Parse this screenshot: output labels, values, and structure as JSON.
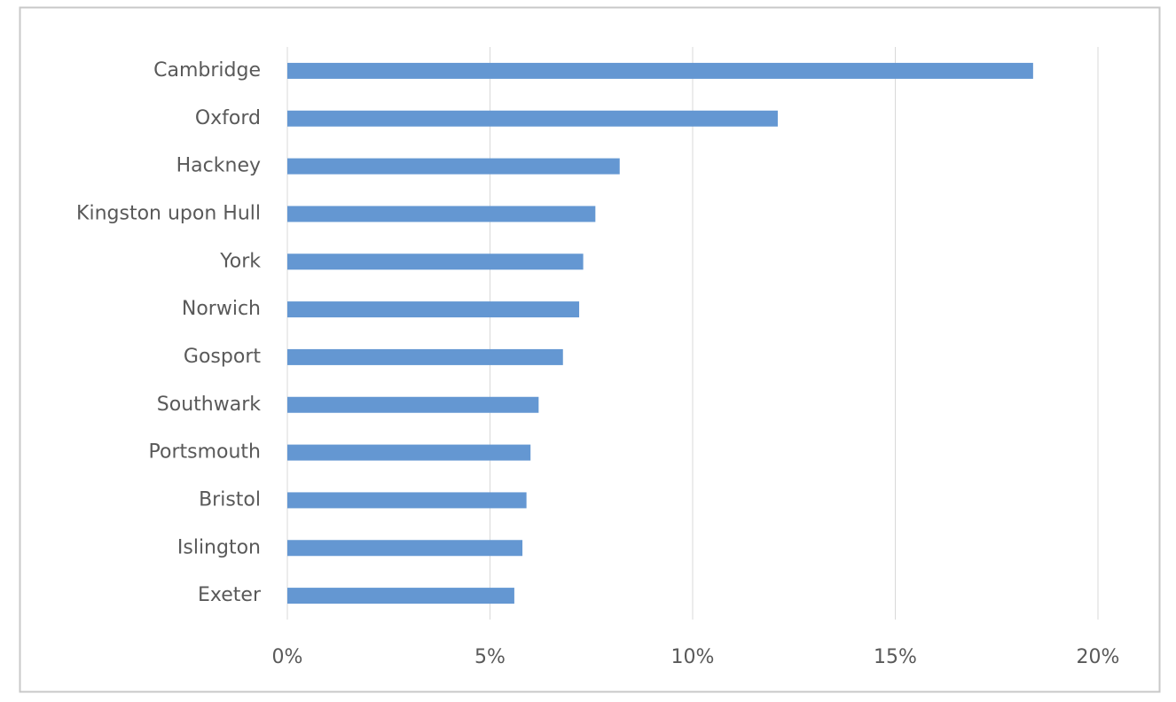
{
  "chart_data": {
    "type": "hbar",
    "categories": [
      "Cambridge",
      "Oxford",
      "Hackney",
      "Kingston upon Hull",
      "York",
      "Norwich",
      "Gosport",
      "Southwark",
      "Portsmouth",
      "Bristol",
      "Islington",
      "Exeter"
    ],
    "values": [
      18.4,
      12.1,
      8.2,
      7.6,
      7.3,
      7.2,
      6.8,
      6.2,
      6.0,
      5.9,
      5.8,
      5.6
    ],
    "color": "#6497d2",
    "xlim": [
      0,
      20
    ],
    "xticks": [
      {
        "value": 0,
        "label": "0%"
      },
      {
        "value": 5,
        "label": "5%"
      },
      {
        "value": 10,
        "label": "10%"
      },
      {
        "value": 15,
        "label": "15%"
      },
      {
        "value": 20,
        "label": "20%"
      }
    ],
    "grid": true
  }
}
